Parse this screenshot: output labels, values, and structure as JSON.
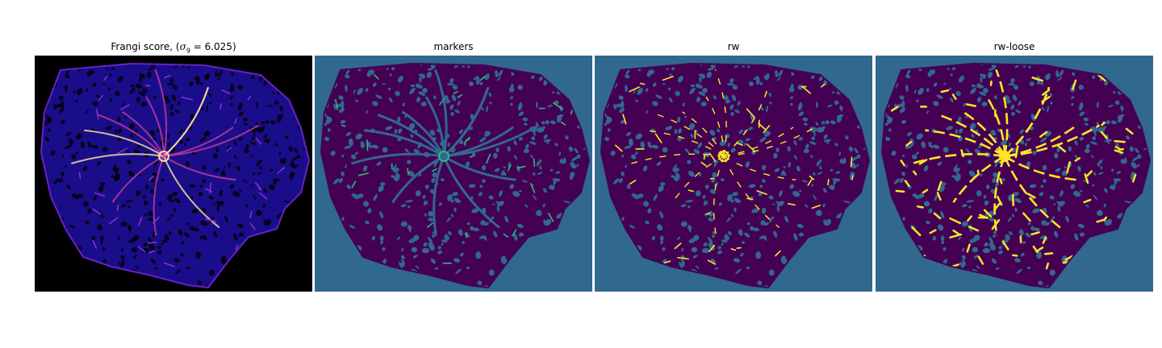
{
  "panels": [
    {
      "id": "frangi",
      "title": {
        "prefix": "Frangi score, (",
        "sigma_symbol": "σ",
        "sigma_sub": "9",
        "suffix": " = 6.025)"
      },
      "colormap": "magma",
      "background": "#000000",
      "body_color": "#1a0d8a",
      "highlight_color": "#f9d9a0"
    },
    {
      "id": "markers",
      "title": {
        "text": "markers"
      },
      "colormap": "viridis",
      "background": "#31688e",
      "body_color": "#440154",
      "highlight_color": "#35b779"
    },
    {
      "id": "rw",
      "title": {
        "text": "rw"
      },
      "colormap": "viridis",
      "background": "#31688e",
      "body_color": "#440154",
      "highlight_color": "#fde725"
    },
    {
      "id": "rw-loose",
      "title": {
        "text": "rw-loose"
      },
      "colormap": "viridis",
      "background": "#31688e",
      "body_color": "#440154",
      "highlight_color": "#fde725"
    }
  ]
}
